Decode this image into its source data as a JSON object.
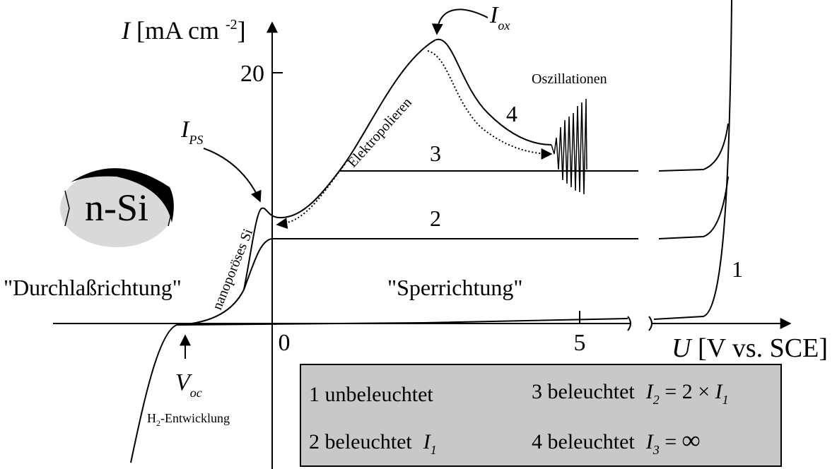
{
  "axes": {
    "y_label": {
      "symbol": "I",
      "text": "[mA cm",
      "superscript": "-2",
      "close": "]"
    },
    "y_tick": "20",
    "x_ticks": [
      "0",
      "5"
    ],
    "x_label": {
      "symbol": "U",
      "text": "[V vs. SCE]"
    }
  },
  "annotations": {
    "i_ox": {
      "symbol": "I",
      "subscript": "ox"
    },
    "i_ps": {
      "symbol": "I",
      "subscript": "PS"
    },
    "v_oc": {
      "symbol": "V",
      "subscript": "oc"
    },
    "oscillations": "Oszillationen",
    "electropolishing": "Elektropolieren",
    "nanoporous": "nanoporöses Si",
    "h2": {
      "text": "H",
      "subscript": "2",
      "rest": "-Entwicklung"
    },
    "forward": "\"Durchlaßrichtung\"",
    "reverse": "\"Sperrichtung\"",
    "sample": "n-Si"
  },
  "curve_labels": [
    "1",
    "2",
    "3",
    "4"
  ],
  "legend": [
    {
      "text": "1 unbeleuchtet"
    },
    {
      "text": "2 beleuchtet",
      "symbol": "I",
      "subscript": "1"
    },
    {
      "text": "3 beleuchtet",
      "symbol": "I",
      "subscript": "2",
      "relation": " = 2 × ",
      "rhs_symbol": "I",
      "rhs_subscript": "1"
    },
    {
      "text": "4 beleuchtet",
      "symbol": "I",
      "subscript": "3",
      "relation": " = ",
      "rhs": "∞"
    }
  ]
}
